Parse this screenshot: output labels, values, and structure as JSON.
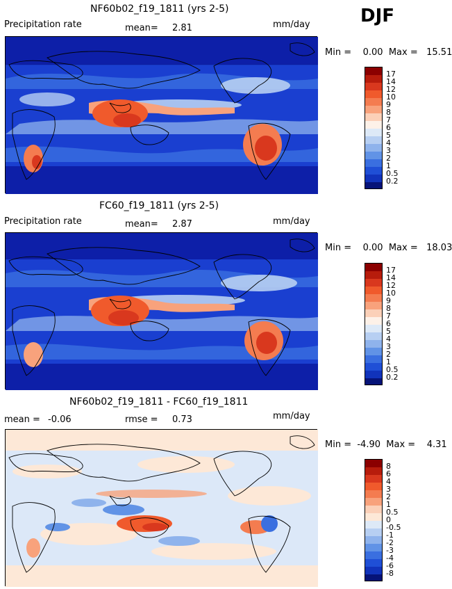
{
  "season": "DJF",
  "panels": [
    {
      "title": "NF60b02_f19_1811 (yrs 2-5)",
      "left_label": "Precipitation rate",
      "mid_label": "mean=",
      "mid_value": "2.81",
      "unit": "mm/day",
      "minmax": "Min =    0.00  Max =   15.51",
      "colorbar_levels": [
        "17",
        "14",
        "12",
        "10",
        "9",
        "8",
        "7",
        "6",
        "5",
        "4",
        "3",
        "2",
        "1",
        "0.5",
        "0.2"
      ]
    },
    {
      "title": "FC60_f19_1811 (yrs 2-5)",
      "left_label": "Precipitation rate",
      "mid_label": "mean=",
      "mid_value": "2.87",
      "unit": "mm/day",
      "minmax": "Min =    0.00  Max =   18.03",
      "colorbar_levels": [
        "17",
        "14",
        "12",
        "10",
        "9",
        "8",
        "7",
        "6",
        "5",
        "4",
        "3",
        "2",
        "1",
        "0.5",
        "0.2"
      ]
    },
    {
      "title": "NF60b02_f19_1811 - FC60_f19_1811",
      "left_label": "mean =",
      "left_value": "-0.06",
      "mid_label": "rmse =",
      "mid_value": "0.73",
      "unit": "mm/day",
      "minmax": "Min =  -4.90  Max =    4.31",
      "colorbar_levels": [
        "8",
        "6",
        "4",
        "3",
        "2",
        "1",
        "0.5",
        "0",
        "-0.5",
        "-1",
        "-2",
        "-3",
        "-4",
        "-6",
        "-8"
      ]
    }
  ],
  "colors": {
    "precip": [
      "#8b0000",
      "#b71c0c",
      "#d9381e",
      "#f05a2c",
      "#f47c50",
      "#f8a27c",
      "#fbd0b8",
      "#dde9f7",
      "#b7cff2",
      "#8fb3ec",
      "#6193e6",
      "#3a6fe0",
      "#1f4fd6",
      "#1133bb",
      "#0a1f99",
      "#061378"
    ],
    "diff": [
      "#8b0000",
      "#b71c0c",
      "#d9381e",
      "#f05a2c",
      "#f47c50",
      "#f8a27c",
      "#fbd0b8",
      "#fde8d7",
      "#dde9f7",
      "#b7cff2",
      "#8fb3ec",
      "#6193e6",
      "#3a6fe0",
      "#1f4fd6",
      "#1133bb",
      "#061378"
    ],
    "ocean_dark": "#0d1fa8",
    "ocean_mid": "#2b55dd",
    "diff_bg": "#dce8f8"
  }
}
